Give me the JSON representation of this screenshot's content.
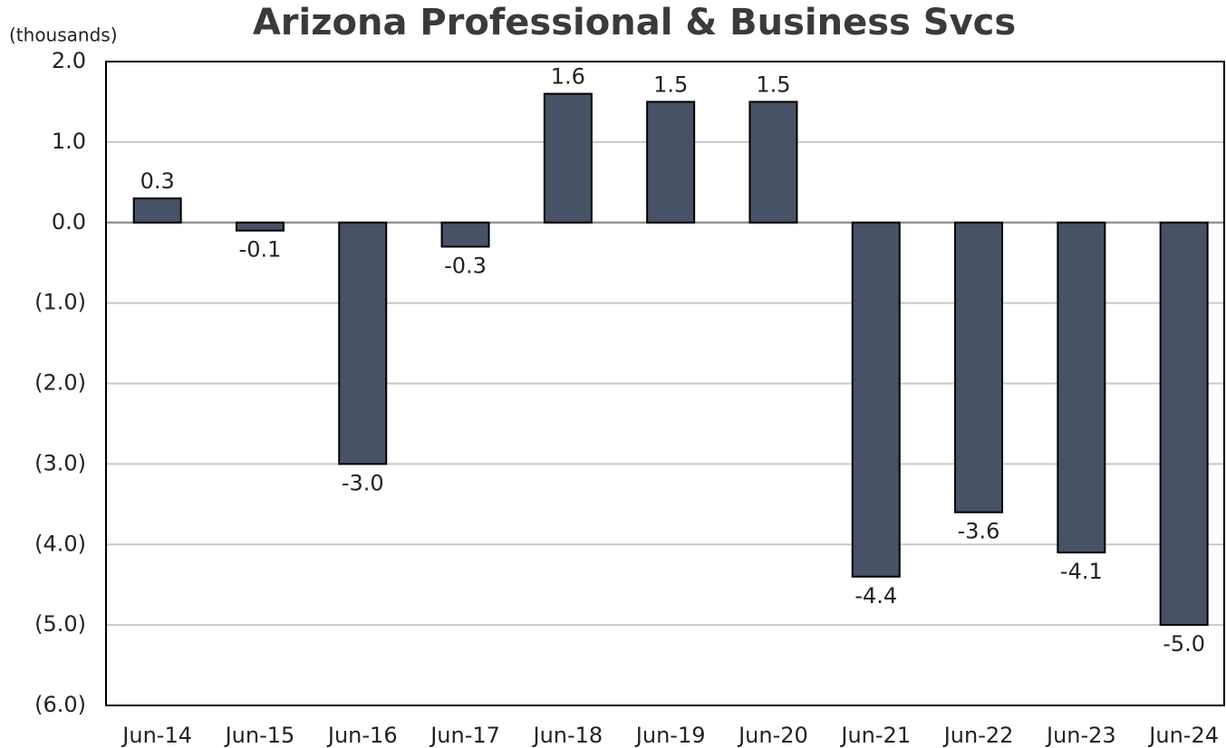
{
  "chart_data": {
    "type": "bar",
    "title": "Arizona Professional & Business Svcs",
    "y_label": "(thousands)",
    "categories": [
      "Jun-14",
      "Jun-15",
      "Jun-16",
      "Jun-17",
      "Jun-18",
      "Jun-19",
      "Jun-20",
      "Jun-21",
      "Jun-22",
      "Jun-23",
      "Jun-24"
    ],
    "values": [
      0.3,
      -0.1,
      -3.0,
      -0.3,
      1.6,
      1.5,
      1.5,
      -4.4,
      -3.6,
      -4.1,
      -5.0
    ],
    "value_labels": [
      "0.3",
      "-0.1",
      "-3.0",
      "-0.3",
      "1.6",
      "1.5",
      "1.5",
      "-4.4",
      "-3.6",
      "-4.1",
      "-5.0"
    ],
    "color": "#475266",
    "ylim": [
      -6,
      2
    ],
    "yticks": [
      {
        "value": 2,
        "label": "2.0"
      },
      {
        "value": 1,
        "label": "1.0"
      },
      {
        "value": 0,
        "label": "0.0"
      },
      {
        "value": -1,
        "label": "(1.0)"
      },
      {
        "value": -2,
        "label": "(2.0)"
      },
      {
        "value": -3,
        "label": "(3.0)"
      },
      {
        "value": -4,
        "label": "(4.0)"
      },
      {
        "value": -5,
        "label": "(5.0)"
      },
      {
        "value": -6,
        "label": "(6.0)"
      }
    ],
    "grid": true
  }
}
